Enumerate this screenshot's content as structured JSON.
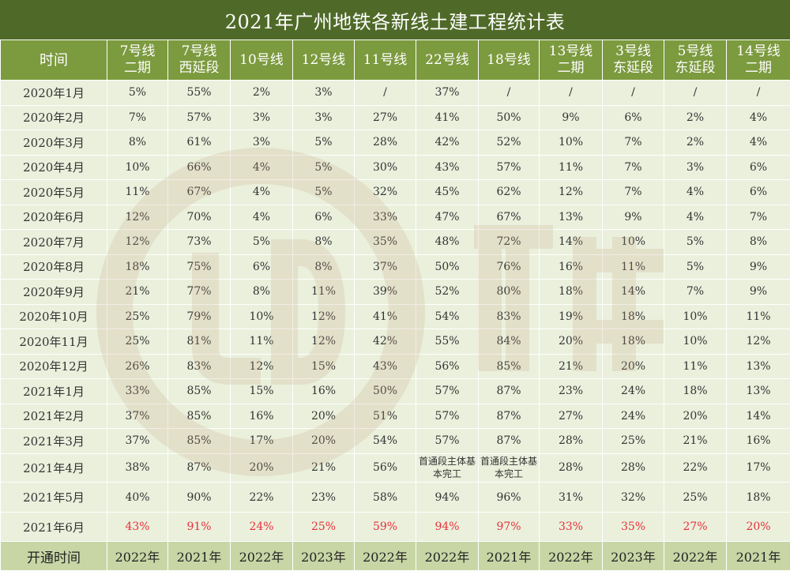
{
  "title": "2021年广州地铁各新线土建工程统计表",
  "header": {
    "time_label": "时间",
    "lines": [
      [
        "7号线",
        "二期"
      ],
      [
        "7号线",
        "西延段"
      ],
      [
        "10号线",
        ""
      ],
      [
        "12号线",
        ""
      ],
      [
        "11号线",
        ""
      ],
      [
        "22号线",
        ""
      ],
      [
        "18号线",
        ""
      ],
      [
        "13号线",
        "二期"
      ],
      [
        "3号线",
        "东延段"
      ],
      [
        "5号线",
        "东延段"
      ],
      [
        "14号线",
        "二期"
      ]
    ]
  },
  "rows": [
    {
      "time": "2020年1月",
      "values": [
        "5%",
        "55%",
        "2%",
        "3%",
        "/",
        "37%",
        "/",
        "/",
        "/",
        "/",
        "/"
      ]
    },
    {
      "time": "2020年2月",
      "values": [
        "7%",
        "57%",
        "3%",
        "3%",
        "27%",
        "41%",
        "50%",
        "9%",
        "6%",
        "2%",
        "4%"
      ]
    },
    {
      "time": "2020年3月",
      "values": [
        "8%",
        "61%",
        "3%",
        "5%",
        "28%",
        "42%",
        "52%",
        "10%",
        "7%",
        "2%",
        "4%"
      ]
    },
    {
      "time": "2020年4月",
      "values": [
        "10%",
        "66%",
        "4%",
        "5%",
        "30%",
        "43%",
        "57%",
        "11%",
        "7%",
        "3%",
        "6%"
      ]
    },
    {
      "time": "2020年5月",
      "values": [
        "11%",
        "67%",
        "4%",
        "5%",
        "32%",
        "45%",
        "62%",
        "12%",
        "7%",
        "4%",
        "6%"
      ]
    },
    {
      "time": "2020年6月",
      "values": [
        "12%",
        "70%",
        "4%",
        "6%",
        "33%",
        "47%",
        "67%",
        "13%",
        "9%",
        "4%",
        "7%"
      ]
    },
    {
      "time": "2020年7月",
      "values": [
        "12%",
        "73%",
        "5%",
        "8%",
        "35%",
        "48%",
        "72%",
        "14%",
        "10%",
        "5%",
        "8%"
      ]
    },
    {
      "time": "2020年8月",
      "values": [
        "18%",
        "75%",
        "6%",
        "8%",
        "37%",
        "50%",
        "76%",
        "16%",
        "11%",
        "5%",
        "9%"
      ]
    },
    {
      "time": "2020年9月",
      "values": [
        "21%",
        "77%",
        "8%",
        "11%",
        "39%",
        "52%",
        "80%",
        "18%",
        "14%",
        "7%",
        "9%"
      ]
    },
    {
      "time": "2020年10月",
      "values": [
        "25%",
        "79%",
        "10%",
        "12%",
        "41%",
        "54%",
        "83%",
        "19%",
        "18%",
        "10%",
        "11%"
      ]
    },
    {
      "time": "2020年11月",
      "values": [
        "25%",
        "81%",
        "11%",
        "12%",
        "42%",
        "55%",
        "84%",
        "20%",
        "18%",
        "10%",
        "12%"
      ]
    },
    {
      "time": "2020年12月",
      "values": [
        "26%",
        "83%",
        "12%",
        "15%",
        "43%",
        "56%",
        "85%",
        "21%",
        "20%",
        "11%",
        "13%"
      ]
    },
    {
      "time": "2021年1月",
      "values": [
        "33%",
        "85%",
        "15%",
        "16%",
        "50%",
        "57%",
        "87%",
        "23%",
        "24%",
        "18%",
        "13%"
      ]
    },
    {
      "time": "2021年2月",
      "values": [
        "37%",
        "85%",
        "16%",
        "20%",
        "51%",
        "57%",
        "87%",
        "27%",
        "24%",
        "20%",
        "14%"
      ]
    },
    {
      "time": "2021年3月",
      "values": [
        "37%",
        "85%",
        "17%",
        "20%",
        "54%",
        "57%",
        "87%",
        "28%",
        "25%",
        "21%",
        "16%"
      ]
    },
    {
      "time": "2021年4月",
      "values": [
        "38%",
        "87%",
        "20%",
        "21%",
        "56%",
        "首通段主体基本完工",
        "首通段主体基本完工",
        "28%",
        "28%",
        "22%",
        "17%"
      ]
    },
    {
      "time": "2021年5月",
      "values": [
        "40%",
        "90%",
        "22%",
        "23%",
        "58%",
        "94%",
        "96%",
        "31%",
        "32%",
        "25%",
        "18%"
      ]
    },
    {
      "time": "2021年6月",
      "values": [
        "43%",
        "91%",
        "24%",
        "25%",
        "59%",
        "94%",
        "97%",
        "33%",
        "35%",
        "27%",
        "20%"
      ]
    }
  ],
  "footer": {
    "label": "开通时间",
    "values": [
      "2022年",
      "2021年",
      "2022年",
      "2023年",
      "2022年",
      "2022年",
      "2021年",
      "2022年",
      "2023年",
      "2022年",
      "2021年"
    ]
  },
  "colors": {
    "title_bg": "#4f6a28",
    "header_bg": "#7c9a3e",
    "cell_bg": "#eaf0dc",
    "footer_bg": "#c8d6a6",
    "highlight_text": "#e8303a"
  },
  "watermark": {
    "icon": "watermark-logo-icon"
  }
}
